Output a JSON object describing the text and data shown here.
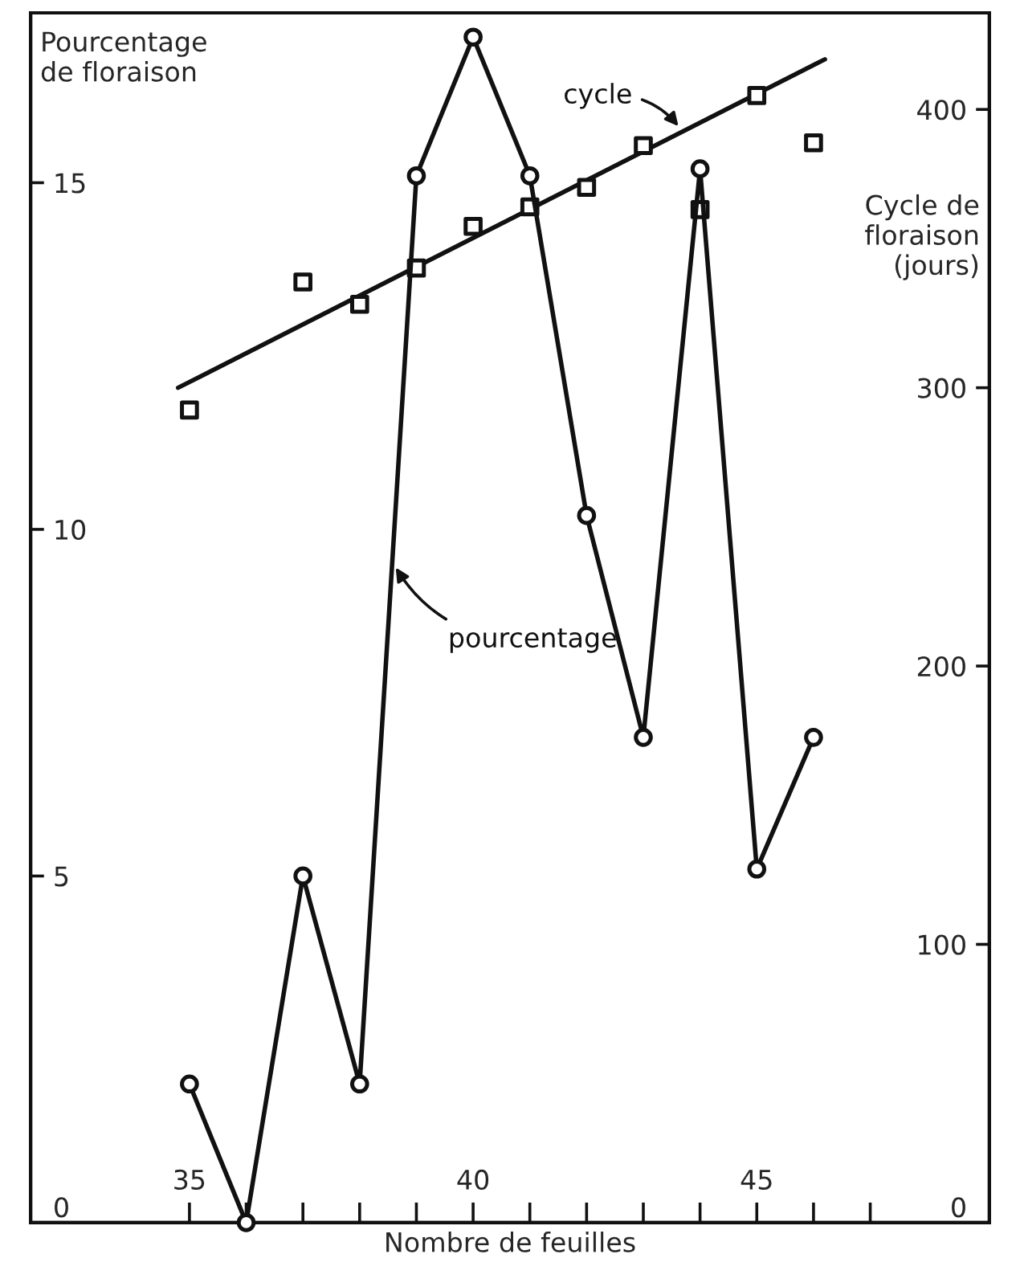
{
  "chart_data": {
    "type": "line",
    "xlabel": "Nombre de feuilles",
    "ylabel": "Pourcentage\nde floraison",
    "y2label": "Cycle de\nfloraison\n(jours)",
    "xlim": [
      32.2,
      49.1
    ],
    "xticks": [
      35,
      {
        "value": 36,
        "label": null
      },
      {
        "value": 37,
        "label": null
      },
      {
        "value": 38,
        "label": null
      },
      {
        "value": 39,
        "label": null
      },
      40,
      {
        "value": 41,
        "label": null
      },
      {
        "value": 42,
        "label": null
      },
      {
        "value": 43,
        "label": null
      },
      {
        "value": 44,
        "label": null
      },
      45,
      {
        "value": 46,
        "label": null
      },
      {
        "value": 47,
        "label": null
      }
    ],
    "ylim": [
      0,
      17.45
    ],
    "yticks": [
      0,
      5,
      10,
      15
    ],
    "y2lim": [
      0,
      434.7
    ],
    "y2ticks": [
      0,
      100,
      200,
      300,
      400
    ],
    "grid": false,
    "series": [
      {
        "name": "pourcentage",
        "color": "#111111",
        "marker": "circle",
        "line_style": "solid",
        "x": [
          35,
          36,
          37,
          38,
          39,
          40,
          41,
          42,
          43,
          44,
          45,
          46
        ],
        "values": [
          2,
          0,
          5,
          2,
          15.1,
          17.1,
          15.1,
          10.2,
          7,
          15.2,
          5.1,
          7
        ]
      },
      {
        "type": "scatter",
        "axis": "y2",
        "color": "#111111",
        "marker": "square",
        "x": [
          35,
          37,
          38,
          39,
          40,
          41,
          42,
          43,
          44,
          45,
          46
        ],
        "values": [
          292,
          338,
          330,
          343,
          358,
          365,
          372,
          387,
          364,
          405,
          388
        ]
      },
      {
        "name": "cycle",
        "axis": "y2",
        "color": "#111111",
        "line_style": "solid",
        "x": [
          34.8,
          46.2
        ],
        "values": [
          300,
          418
        ]
      }
    ]
  }
}
